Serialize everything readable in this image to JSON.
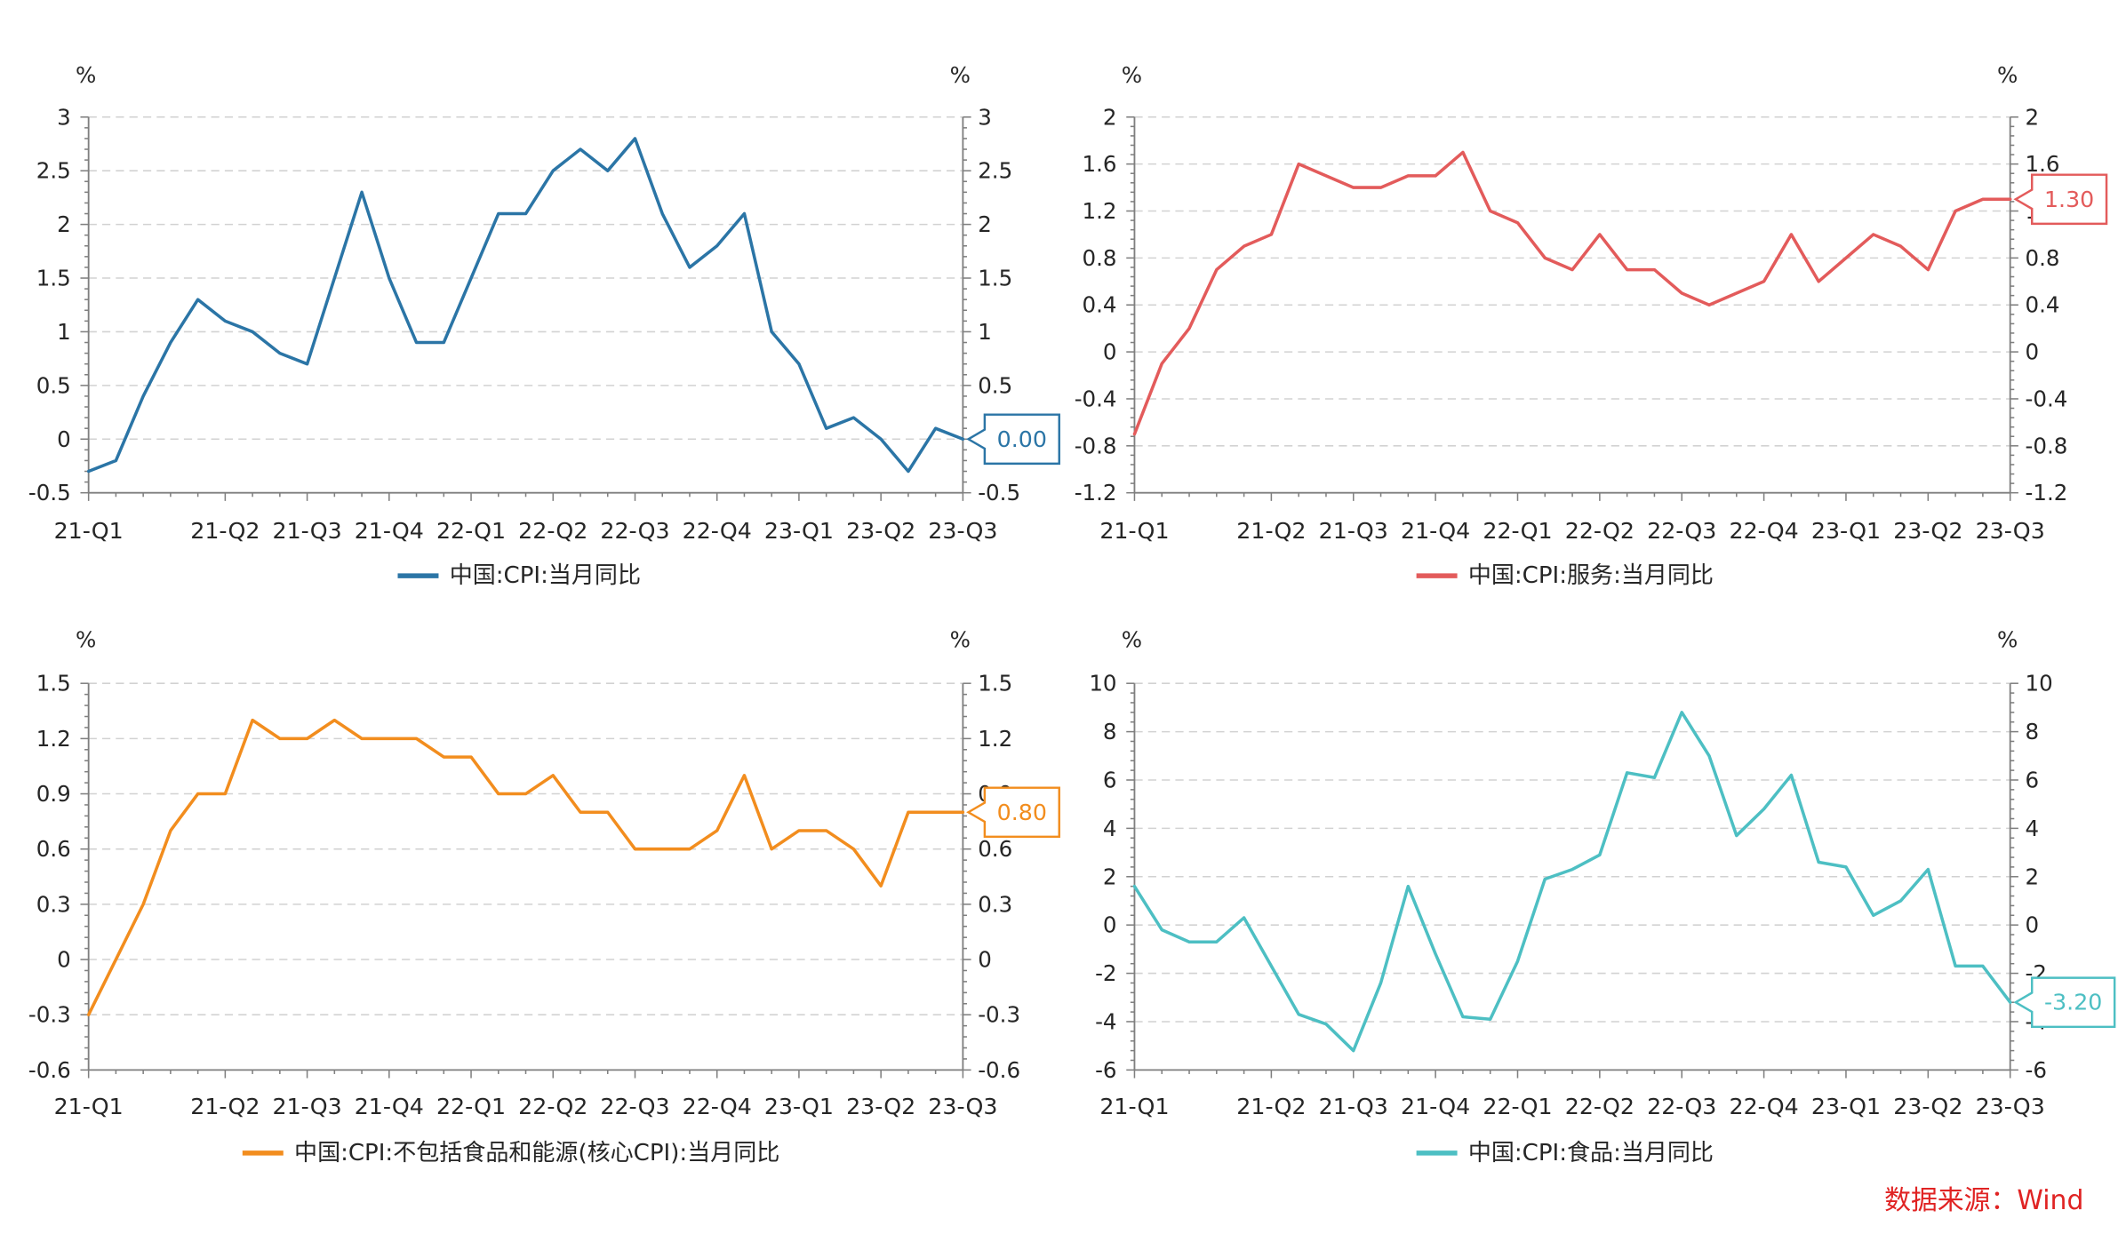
{
  "chart_data": [
    {
      "type": "line",
      "y_unit": "%",
      "ylim": [
        -0.5,
        3
      ],
      "y_ticks": [
        3,
        2.5,
        2,
        1.5,
        1,
        0.5,
        0,
        -0.5
      ],
      "x_ticks": [
        "21-Q1",
        "21-Q2",
        "21-Q3",
        "21-Q4",
        "22-Q1",
        "22-Q2",
        "22-Q3",
        "22-Q4",
        "23-Q1",
        "23-Q2",
        "23-Q3"
      ],
      "mirror_y_axis": true,
      "grid": true,
      "legend": "bottom",
      "series": [
        {
          "name": "中国:CPI:当月同比",
          "color": "#2b75a6",
          "values": [
            -0.3,
            -0.2,
            0.4,
            0.9,
            1.3,
            1.1,
            1.0,
            0.8,
            0.7,
            1.5,
            2.3,
            1.5,
            0.9,
            0.9,
            1.5,
            2.1,
            2.1,
            2.5,
            2.7,
            2.5,
            2.8,
            2.1,
            1.6,
            1.8,
            2.1,
            1.0,
            0.7,
            0.1,
            0.2,
            0.0,
            -0.3,
            0.1,
            0.0
          ]
        }
      ],
      "last_value_label": "0.00"
    },
    {
      "type": "line",
      "y_unit": "%",
      "ylim": [
        -1.2,
        2
      ],
      "y_ticks": [
        2,
        1.6,
        1.2,
        0.8,
        0.4,
        0,
        -0.4,
        -0.8,
        -1.2
      ],
      "x_ticks": [
        "21-Q1",
        "21-Q2",
        "21-Q3",
        "21-Q4",
        "22-Q1",
        "22-Q2",
        "22-Q3",
        "22-Q4",
        "23-Q1",
        "23-Q2",
        "23-Q3"
      ],
      "mirror_y_axis": true,
      "grid": true,
      "legend": "bottom",
      "series": [
        {
          "name": "中国:CPI:服务:当月同比",
          "color": "#e35b5b",
          "values": [
            -0.7,
            -0.1,
            0.2,
            0.7,
            0.9,
            1.0,
            1.6,
            1.5,
            1.4,
            1.4,
            1.5,
            1.5,
            1.7,
            1.2,
            1.1,
            0.8,
            0.7,
            1.0,
            0.7,
            0.7,
            0.5,
            0.4,
            0.5,
            0.6,
            1.0,
            0.6,
            0.8,
            1.0,
            0.9,
            0.7,
            1.2,
            1.3,
            1.3
          ]
        }
      ],
      "last_value_label": "1.30"
    },
    {
      "type": "line",
      "y_unit": "%",
      "ylim": [
        -0.6,
        1.5
      ],
      "y_ticks": [
        1.5,
        1.2,
        0.9,
        0.6,
        0.3,
        0,
        -0.3,
        -0.6
      ],
      "x_ticks": [
        "21-Q1",
        "21-Q2",
        "21-Q3",
        "21-Q4",
        "22-Q1",
        "22-Q2",
        "22-Q3",
        "22-Q4",
        "23-Q1",
        "23-Q2",
        "23-Q3"
      ],
      "mirror_y_axis": true,
      "grid": true,
      "legend": "bottom",
      "series": [
        {
          "name": "中国:CPI:不包括食品和能源(核心CPI):当月同比",
          "color": "#f28d1e",
          "values": [
            -0.3,
            0.0,
            0.3,
            0.7,
            0.9,
            0.9,
            1.3,
            1.2,
            1.2,
            1.3,
            1.2,
            1.2,
            1.2,
            1.1,
            1.1,
            0.9,
            0.9,
            1.0,
            0.8,
            0.8,
            0.6,
            0.6,
            0.6,
            0.7,
            1.0,
            0.6,
            0.7,
            0.7,
            0.6,
            0.4,
            0.8,
            0.8,
            0.8
          ]
        }
      ],
      "last_value_label": "0.80"
    },
    {
      "type": "line",
      "y_unit": "%",
      "ylim": [
        -6,
        10
      ],
      "y_ticks": [
        10,
        8,
        6,
        4,
        2,
        0,
        -2,
        -4,
        -6
      ],
      "x_ticks": [
        "21-Q1",
        "21-Q2",
        "21-Q3",
        "21-Q4",
        "22-Q1",
        "22-Q2",
        "22-Q3",
        "22-Q4",
        "23-Q1",
        "23-Q2",
        "23-Q3"
      ],
      "mirror_y_axis": true,
      "grid": true,
      "legend": "bottom",
      "series": [
        {
          "name": "中国:CPI:食品:当月同比",
          "color": "#4dbfc3",
          "values": [
            1.6,
            -0.2,
            -0.7,
            -0.7,
            0.3,
            -1.7,
            -3.7,
            -4.1,
            -5.2,
            -2.4,
            1.6,
            -1.2,
            -3.8,
            -3.9,
            -1.5,
            1.9,
            2.3,
            2.9,
            6.3,
            6.1,
            8.8,
            7.0,
            3.7,
            4.8,
            6.2,
            2.6,
            2.4,
            0.4,
            1.0,
            2.3,
            -1.7,
            -1.7,
            -3.2
          ]
        }
      ],
      "last_value_label": "-3.20"
    }
  ],
  "source": "数据来源：Wind",
  "source_color": "#e02323"
}
